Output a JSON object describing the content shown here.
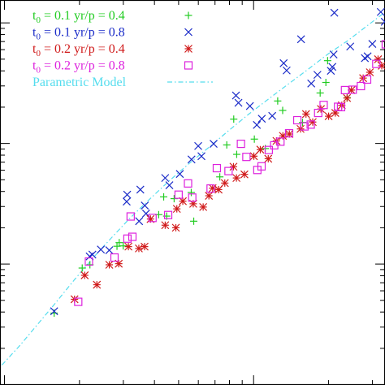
{
  "chart_data": {
    "type": "scatter",
    "xscale": "log",
    "yscale": "log",
    "grid": false,
    "legend_position": "top-left",
    "series": [
      {
        "name": "t0 = 0.1 yr/p = 0.4",
        "label_parts": {
          "t": "t",
          "sub": "0",
          "rest": " = 0.1 yr/p = 0.4"
        },
        "marker": "+",
        "color": "#22cc22",
        "points": [
          [
            0.218,
            0.198
          ],
          [
            0.331,
            0.322
          ],
          [
            0.362,
            0.331
          ],
          [
            0.471,
            0.382
          ],
          [
            0.48,
            0.392
          ],
          [
            0.496,
            0.383
          ],
          [
            0.639,
            0.469
          ],
          [
            0.659,
            0.518
          ],
          [
            0.671,
            0.465
          ],
          [
            0.701,
            0.513
          ],
          [
            0.78,
            0.451
          ],
          [
            0.77,
            0.53
          ],
          [
            0.885,
            0.573
          ],
          [
            0.913,
            0.661
          ],
          [
            0.953,
            0.635
          ],
          [
            0.941,
            0.732
          ],
          [
            1.024,
            0.677
          ],
          [
            1.068,
            0.651
          ],
          [
            1.138,
            0.756
          ],
          [
            1.118,
            0.782
          ],
          [
            1.218,
            0.723
          ],
          [
            1.289,
            0.804
          ],
          [
            1.312,
            0.833
          ],
          [
            1.398,
            0.791
          ],
          [
            1.319,
            0.893
          ]
        ]
      },
      {
        "name": "t0 = 0.1 yr/p = 0.8",
        "label_parts": {
          "t": "t",
          "sub": "0",
          "rest": " = 0.1 yr/p = 0.8"
        },
        "marker": "x",
        "color": "#1a2bc8",
        "points": [
          [
            0.218,
            0.203
          ],
          [
            0.361,
            0.354
          ],
          [
            0.372,
            0.359
          ],
          [
            0.406,
            0.373
          ],
          [
            0.44,
            0.371
          ],
          [
            0.51,
            0.505
          ],
          [
            0.56,
            0.451
          ],
          [
            0.583,
            0.494
          ],
          [
            0.512,
            0.524
          ],
          [
            0.565,
            0.538
          ],
          [
            0.588,
            0.472
          ],
          [
            0.665,
            0.57
          ],
          [
            0.682,
            0.55
          ],
          [
            0.724,
            0.581
          ],
          [
            0.771,
            0.621
          ],
          [
            0.811,
            0.63
          ],
          [
            0.798,
            0.658
          ],
          [
            0.86,
            0.664
          ],
          [
            0.95,
            0.797
          ],
          [
            0.96,
            0.777
          ],
          [
            1.006,
            0.768
          ],
          [
            1.034,
            0.716
          ],
          [
            1.054,
            0.733
          ],
          [
            1.096,
            0.741
          ],
          [
            1.142,
            0.886
          ],
          [
            1.154,
            0.866
          ],
          [
            1.212,
            0.952
          ],
          [
            1.253,
            0.83
          ],
          [
            1.278,
            0.854
          ],
          [
            1.332,
            0.865
          ],
          [
            1.338,
            0.876
          ],
          [
            1.346,
            1.025
          ],
          [
            1.343,
            0.91
          ],
          [
            1.41,
            0.932
          ],
          [
            1.469,
            0.9
          ],
          [
            1.48,
            0.905
          ],
          [
            1.499,
            0.939
          ],
          [
            1.588,
            0.958
          ],
          [
            1.549,
            1.0
          ],
          [
            1.533,
            1.027
          ]
        ]
      },
      {
        "name": "t0 = 0.2 yr/p = 0.4",
        "label_parts": {
          "t": "t",
          "sub": "0",
          "rest": " = 0.2 yr/p = 0.4"
        },
        "marker": "*",
        "color": "#d01a1a",
        "points": [
          [
            0.3,
            0.236
          ],
          [
            0.341,
            0.302
          ],
          [
            0.39,
            0.276
          ],
          [
            0.44,
            0.331
          ],
          [
            0.478,
            0.334
          ],
          [
            0.517,
            0.381
          ],
          [
            0.559,
            0.376
          ],
          [
            0.582,
            0.381
          ],
          [
            0.606,
            0.457
          ],
          [
            0.665,
            0.44
          ],
          [
            0.708,
            0.433
          ],
          [
            0.712,
            0.485
          ],
          [
            0.736,
            0.506
          ],
          [
            0.778,
            0.499
          ],
          [
            0.818,
            0.49
          ],
          [
            0.841,
            0.521
          ],
          [
            0.856,
            0.542
          ],
          [
            0.88,
            0.538
          ],
          [
            0.905,
            0.556
          ],
          [
            0.94,
            0.601
          ],
          [
            0.952,
            0.57
          ],
          [
            0.984,
            0.58
          ],
          [
            1.022,
            0.63
          ],
          [
            1.048,
            0.648
          ],
          [
            1.08,
            0.623
          ],
          [
            1.113,
            0.672
          ],
          [
            1.139,
            0.686
          ],
          [
            1.165,
            0.691
          ],
          [
            1.21,
            0.705
          ],
          [
            1.232,
            0.746
          ],
          [
            1.259,
            0.724
          ],
          [
            1.292,
            0.76
          ],
          [
            1.323,
            0.74
          ],
          [
            1.35,
            0.749
          ],
          [
            1.376,
            0.77
          ],
          [
            1.397,
            0.79
          ],
          [
            1.415,
            0.812
          ],
          [
            1.462,
            0.845
          ],
          [
            1.489,
            0.861
          ],
          [
            1.522,
            0.897
          ],
          [
            1.537,
            0.879
          ]
        ]
      },
      {
        "name": "t0 = 0.2 yr/p = 0.8",
        "label_parts": {
          "t": "t",
          "sub": "0",
          "rest": " = 0.2 yr/p = 0.8"
        },
        "marker": "square",
        "color": "#dd22dd",
        "points": [
          [
            0.315,
            0.229
          ],
          [
            0.358,
            0.34
          ],
          [
            0.461,
            0.351
          ],
          [
            0.513,
            0.403
          ],
          [
            0.533,
            0.408
          ],
          [
            0.526,
            0.464
          ],
          [
            0.614,
            0.46
          ],
          [
            0.677,
            0.468
          ],
          [
            0.719,
            0.524
          ],
          [
            0.757,
            0.555
          ],
          [
            0.774,
            0.516
          ],
          [
            0.848,
            0.541
          ],
          [
            0.873,
            0.597
          ],
          [
            0.92,
            0.589
          ],
          [
            0.97,
            0.664
          ],
          [
            0.992,
            0.628
          ],
          [
            1.036,
            0.592
          ],
          [
            1.053,
            0.602
          ],
          [
            1.082,
            0.647
          ],
          [
            1.104,
            0.66
          ],
          [
            1.129,
            0.67
          ],
          [
            1.164,
            0.693
          ],
          [
            1.197,
            0.729
          ],
          [
            1.226,
            0.712
          ],
          [
            1.251,
            0.717
          ],
          [
            1.281,
            0.749
          ],
          [
            1.303,
            0.771
          ],
          [
            1.361,
            0.766
          ],
          [
            1.373,
            0.765
          ],
          [
            1.389,
            0.812
          ],
          [
            1.42,
            0.813
          ],
          [
            1.453,
            0.823
          ],
          [
            1.478,
            0.841
          ],
          [
            1.515,
            0.884
          ],
          [
            1.553,
            0.938
          ],
          [
            1.601,
            0.978
          ]
        ]
      }
    ],
    "model": {
      "name": "Parametric Model",
      "line_style": "dash-dot",
      "color": "#55ddee",
      "points": [
        [
          0.008,
          0.055
        ],
        [
          0.08,
          0.109
        ],
        [
          0.15,
          0.166
        ],
        [
          0.22,
          0.223
        ],
        [
          0.3,
          0.29
        ],
        [
          0.38,
          0.354
        ],
        [
          0.45,
          0.406
        ],
        [
          0.52,
          0.457
        ],
        [
          0.6,
          0.51
        ],
        [
          0.68,
          0.561
        ],
        [
          0.76,
          0.609
        ],
        [
          0.84,
          0.654
        ],
        [
          0.92,
          0.7
        ],
        [
          1.0,
          0.745
        ],
        [
          1.08,
          0.787
        ],
        [
          1.16,
          0.828
        ],
        [
          1.24,
          0.869
        ],
        [
          1.32,
          0.911
        ],
        [
          1.4,
          0.948
        ],
        [
          1.48,
          0.99
        ],
        [
          1.54,
          1.021
        ]
      ]
    },
    "x_major_ticks": [
      0.018,
      1.021
    ],
    "y_major_ticks": [
      0.333,
      0.665
    ]
  }
}
